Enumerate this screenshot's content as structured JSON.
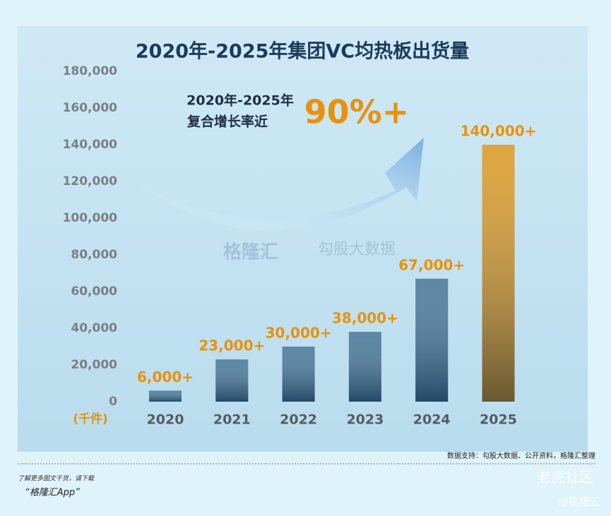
{
  "chart_data": {
    "type": "bar",
    "title": "2020年-2025年集团VC均热板出货量",
    "annotations": [
      "2020年-2025年",
      "复合增长率近",
      "90%+"
    ],
    "y_unit": "(千件)",
    "categories": [
      "2020",
      "2021",
      "2022",
      "2023",
      "2024",
      "2025"
    ],
    "values": [
      6000,
      23000,
      30000,
      38000,
      67000,
      140000
    ],
    "value_labels": [
      "6,000+",
      "23,000+",
      "30,000+",
      "38,000+",
      "67,000+",
      "140,000+"
    ],
    "color": "#3f7294",
    "highlight_color": "#d9961c",
    "ylim": [
      0,
      180000
    ],
    "yticks": [
      0,
      {
        "value": 20000,
        "label": "20,000"
      },
      {
        "value": 40000,
        "label": "40,000"
      },
      {
        "value": 60000,
        "label": "60,000"
      },
      {
        "value": 80000,
        "label": "80,000"
      },
      {
        "value": 100000,
        "label": "100,000"
      },
      {
        "value": 120000,
        "label": "120,000"
      },
      {
        "value": 140000,
        "label": "140,000"
      },
      {
        "value": 160000,
        "label": "160,000"
      },
      {
        "value": 180000,
        "label": "180,000"
      }
    ],
    "grid": false
  },
  "watermarks": [
    "格隆汇",
    "勾股大数据"
  ],
  "source": "数据支持：勾股大数据、公开资料，格隆汇整理",
  "footer_line1": "了解更多图文干货，请下载",
  "footer_line2": "“格隆汇App”",
  "corner_marks": [
    "老虎社区",
    "@格隆汇"
  ]
}
